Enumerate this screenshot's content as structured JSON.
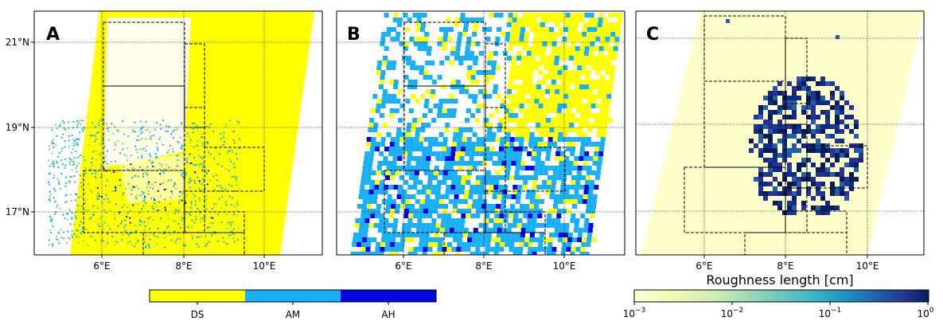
{
  "colors": {
    "DS": "#ffff00",
    "AM": "#1ab0f5",
    "AH": "#0505e0",
    "frame": "#000000",
    "roughness_low": "#ffffcc",
    "roughness_high": "#081d58"
  },
  "chart_data": [
    {
      "panel": "A",
      "type": "heatmap",
      "xticks": [
        "6°E",
        "8°E",
        "10°E"
      ],
      "yticks": [
        "21°N",
        "19°N",
        "17°N"
      ],
      "xlim": [
        4.5,
        11.5
      ],
      "ylim": [
        16.0,
        21.8
      ],
      "grid": true,
      "categories": [
        "DS",
        "AM",
        "AH"
      ]
    },
    {
      "panel": "B",
      "type": "heatmap",
      "xticks": [
        "6°E",
        "8°E",
        "10°E"
      ],
      "xlim": [
        4.5,
        11.5
      ],
      "ylim": [
        16.0,
        21.8
      ],
      "grid": true,
      "categories": [
        "DS",
        "AM",
        "AH"
      ]
    },
    {
      "panel": "C",
      "type": "heatmap",
      "xticks": [
        "6°E",
        "8°E",
        "10°E"
      ],
      "xlim": [
        4.5,
        11.5
      ],
      "ylim": [
        16.0,
        21.8
      ],
      "grid": true,
      "colorbar_scale": "log",
      "colorbar_range": [
        0.001,
        1
      ]
    }
  ],
  "legend_categorical": {
    "labels": [
      "DS",
      "AM",
      "AH"
    ]
  },
  "colorbar_continuous": {
    "label": "Roughness length [cm]",
    "ticks": [
      {
        "base": "10",
        "exp": "−3"
      },
      {
        "base": "10",
        "exp": "−2"
      },
      {
        "base": "10",
        "exp": "−1"
      },
      {
        "base": "10",
        "exp": "0"
      }
    ]
  },
  "panels": {
    "a_letter": "A",
    "b_letter": "B",
    "c_letter": "C"
  }
}
